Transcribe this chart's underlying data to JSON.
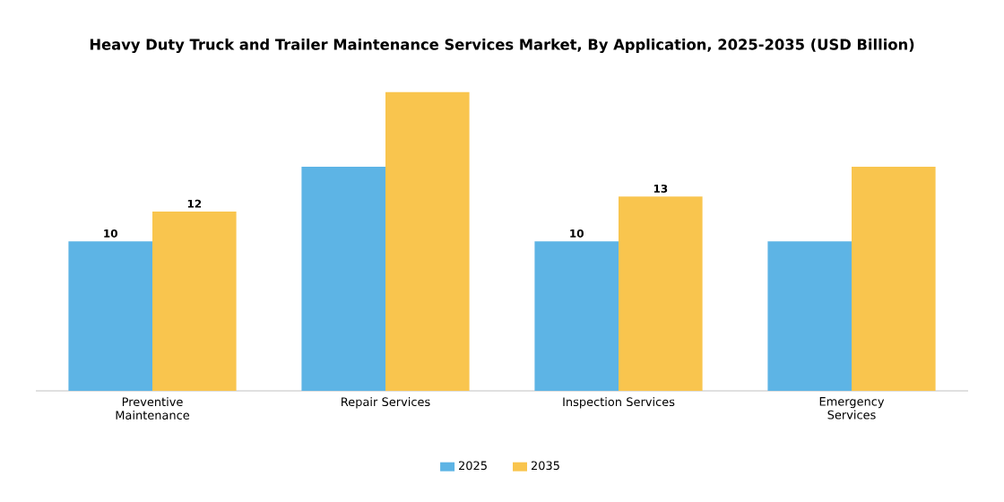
{
  "chart_data": {
    "type": "bar",
    "title": "Heavy Duty Truck and Trailer Maintenance Services Market, By Application, 2025-2035 (USD Billion)",
    "categories": [
      "Preventive Maintenance",
      "Repair Services",
      "Inspection Services",
      "Emergency Services"
    ],
    "series": [
      {
        "name": "2025",
        "color": "#5db4e5",
        "values": [
          10,
          15,
          10,
          10
        ],
        "value_labels": [
          "10",
          null,
          "10",
          null
        ]
      },
      {
        "name": "2035",
        "color": "#f9c54e",
        "values": [
          12,
          20,
          13,
          15
        ],
        "value_labels": [
          "12",
          null,
          "13",
          null
        ]
      }
    ],
    "legend": "bottom",
    "grid": false
  }
}
